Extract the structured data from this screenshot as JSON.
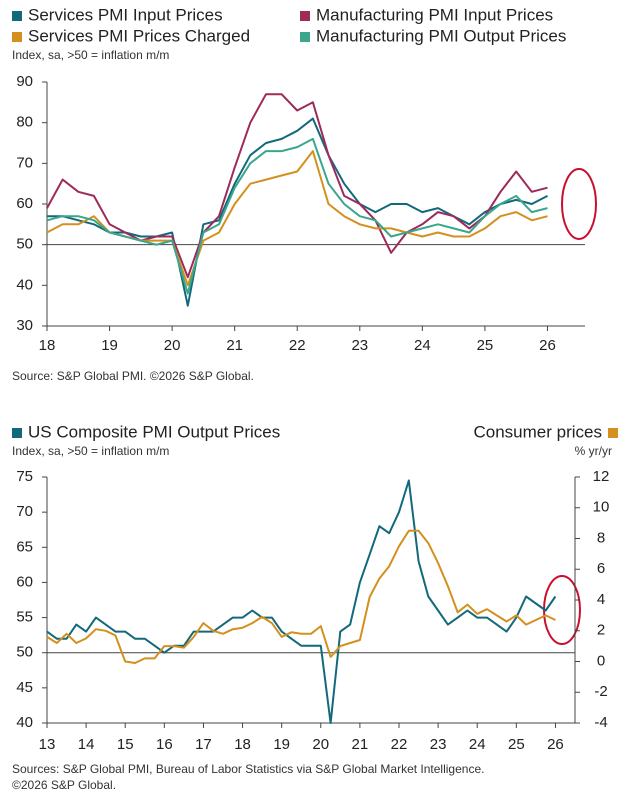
{
  "chart_data": [
    {
      "type": "line",
      "subtitle": "Index, sa, >50 = inflation m/m",
      "source": [
        "Source: S&P Global PMI. ©2026 S&P Global."
      ],
      "x": [
        18,
        18.25,
        18.5,
        18.75,
        19,
        19.25,
        19.5,
        19.75,
        20,
        20.25,
        20.5,
        20.75,
        21,
        21.25,
        21.5,
        21.75,
        22,
        22.25,
        22.5,
        22.75,
        23,
        23.25,
        23.5,
        23.75,
        24,
        24.25,
        24.5,
        24.75,
        25,
        25.25,
        25.5,
        25.75,
        26
      ],
      "series": [
        {
          "name": "Services PMI Input Prices",
          "color": "#12697c",
          "values": [
            57,
            57,
            56,
            55,
            53,
            53,
            52,
            52,
            53,
            35,
            55,
            56,
            65,
            72,
            75,
            76,
            78,
            81,
            72,
            65,
            60,
            58,
            60,
            60,
            58,
            59,
            57,
            55,
            58,
            60,
            61,
            60,
            62
          ]
        },
        {
          "name": "Manufacturing PMI Input Prices",
          "color": "#9e2a5a",
          "values": [
            59,
            66,
            63,
            62,
            55,
            53,
            51,
            52,
            52,
            42,
            53,
            57,
            69,
            80,
            87,
            87,
            83,
            85,
            72,
            62,
            60,
            56,
            48,
            53,
            55,
            58,
            57,
            54,
            57,
            63,
            68,
            63,
            64
          ]
        },
        {
          "name": "Services PMI Prices Charged",
          "color": "#d4901e",
          "values": [
            53,
            55,
            55,
            57,
            53,
            52,
            51,
            51,
            51,
            40,
            51,
            53,
            60,
            65,
            66,
            67,
            68,
            73,
            60,
            57,
            55,
            54,
            54,
            53,
            52,
            53,
            52,
            52,
            54,
            57,
            58,
            56,
            57
          ]
        },
        {
          "name": "Manufacturing PMI Output Prices",
          "color": "#3aa68b",
          "values": [
            56,
            57,
            57,
            56,
            53,
            52,
            51,
            50,
            51,
            38,
            53,
            55,
            64,
            70,
            73,
            73,
            74,
            76,
            65,
            60,
            57,
            56,
            52,
            53,
            54,
            55,
            54,
            53,
            57,
            60,
            62,
            58,
            59
          ]
        }
      ],
      "xlim": [
        18,
        26.6
      ],
      "xticks": [
        18,
        19,
        20,
        21,
        22,
        23,
        24,
        25,
        26
      ],
      "ylim": [
        30,
        90
      ],
      "yticks": [
        30,
        40,
        50,
        60,
        70,
        80,
        90
      ],
      "reference_line": 50
    },
    {
      "type": "line",
      "subtitle": "Index, sa, >50 = inflation m/m",
      "y2_label": "% yr/yr",
      "source": [
        "Sources: S&P Global PMI, Bureau of Labor Statistics via S&P Global Market Intelligence.",
        "©2026 S&P Global."
      ],
      "x": [
        13,
        13.25,
        13.5,
        13.75,
        14,
        14.25,
        14.5,
        14.75,
        15,
        15.25,
        15.5,
        15.75,
        16,
        16.25,
        16.5,
        16.75,
        17,
        17.25,
        17.5,
        17.75,
        18,
        18.25,
        18.5,
        18.75,
        19,
        19.25,
        19.5,
        19.75,
        20,
        20.25,
        20.5,
        20.75,
        21,
        21.25,
        21.5,
        21.75,
        22,
        22.25,
        22.5,
        22.75,
        23,
        23.25,
        23.5,
        23.75,
        24,
        24.25,
        24.5,
        24.75,
        25,
        25.25,
        25.5,
        25.75,
        26
      ],
      "series": [
        {
          "name": "US Composite PMI Output Prices",
          "color": "#12697c",
          "values": [
            53,
            52,
            52,
            54,
            53,
            55,
            54,
            53,
            53,
            52,
            52,
            51,
            50,
            51,
            51,
            53,
            53,
            53,
            54,
            55,
            55,
            56,
            55,
            55,
            53,
            52,
            51,
            51,
            51,
            40,
            53,
            54,
            60,
            64,
            68,
            67,
            70,
            74.5,
            63,
            58,
            56,
            54,
            55,
            56,
            55,
            55,
            54,
            53,
            55,
            58,
            57,
            56,
            58
          ]
        },
        {
          "name": "Consumer prices",
          "color": "#d4901e",
          "axis": "y2",
          "values": [
            1.6,
            1.2,
            1.8,
            1.2,
            1.5,
            2.1,
            2.0,
            1.7,
            0.0,
            -0.1,
            0.2,
            0.2,
            1.0,
            1.0,
            0.9,
            1.6,
            2.5,
            2.0,
            1.8,
            2.1,
            2.2,
            2.5,
            2.9,
            2.5,
            1.6,
            1.9,
            1.8,
            1.8,
            2.3,
            0.3,
            1.0,
            1.2,
            1.4,
            4.2,
            5.4,
            6.2,
            7.5,
            8.5,
            8.5,
            7.7,
            6.4,
            4.9,
            3.2,
            3.7,
            3.1,
            3.4,
            3.0,
            2.6,
            3.0,
            2.4,
            2.7,
            3.0,
            2.7
          ]
        }
      ],
      "xlim": [
        13,
        26.5
      ],
      "xticks": [
        13,
        14,
        15,
        16,
        17,
        18,
        19,
        20,
        21,
        22,
        23,
        24,
        25,
        26
      ],
      "ylim": [
        40,
        75
      ],
      "yticks": [
        40,
        45,
        50,
        55,
        60,
        65,
        70,
        75
      ],
      "y2lim": [
        -4,
        12
      ],
      "y2ticks": [
        -4,
        -2,
        0,
        2,
        4,
        6,
        8,
        10,
        12
      ],
      "reference_line": 50
    }
  ]
}
